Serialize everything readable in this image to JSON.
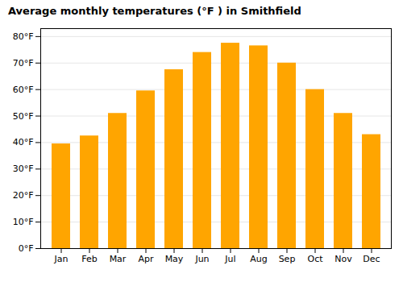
{
  "chart_data": {
    "type": "bar",
    "title": "Average monthly temperatures (°F ) in Smithfield",
    "categories": [
      "Jan",
      "Feb",
      "Mar",
      "Apr",
      "May",
      "Jun",
      "Jul",
      "Aug",
      "Sep",
      "Oct",
      "Nov",
      "Dec"
    ],
    "values": [
      39.5,
      42.5,
      51,
      59.5,
      67.5,
      74,
      77.5,
      76.5,
      70,
      60,
      51,
      43
    ],
    "color": "#FFA500",
    "ylim": [
      0,
      83
    ],
    "yticks": [
      {
        "value": 0,
        "label": "0°F"
      },
      {
        "value": 10,
        "label": "10°F"
      },
      {
        "value": 20,
        "label": "20°F"
      },
      {
        "value": 30,
        "label": "30°F"
      },
      {
        "value": 40,
        "label": "40°F"
      },
      {
        "value": 50,
        "label": "50°F"
      },
      {
        "value": 60,
        "label": "60°F"
      },
      {
        "value": 70,
        "label": "70°F"
      },
      {
        "value": 80,
        "label": "80°F"
      }
    ],
    "grid": true
  }
}
